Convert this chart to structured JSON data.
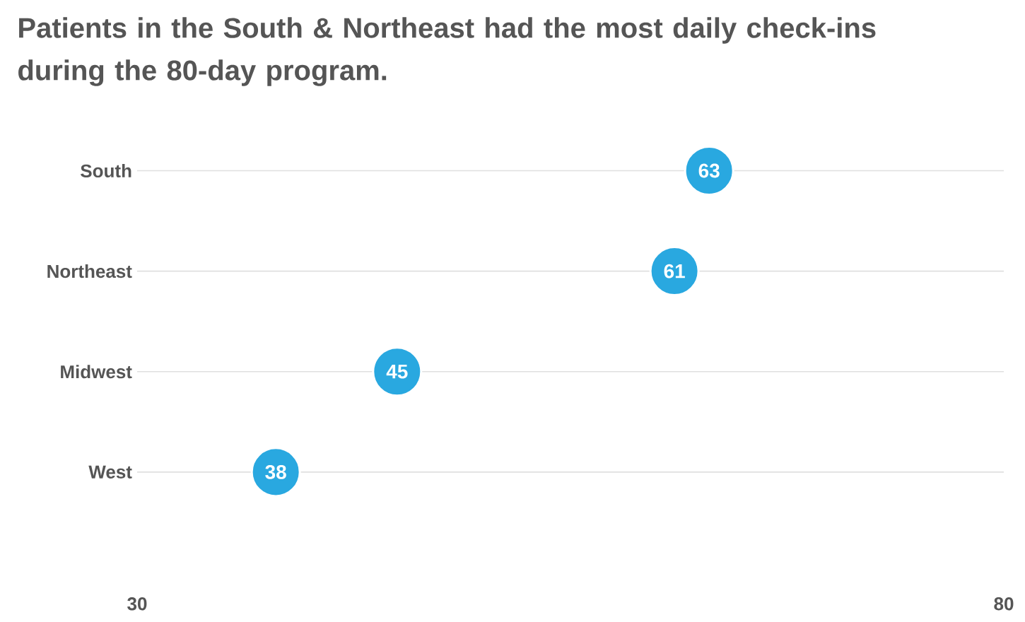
{
  "chart_data": {
    "type": "scatter",
    "title": "Patients in the South & Northeast had the most daily check-ins during the 80-day program.",
    "orientation": "horizontal",
    "categories": [
      "South",
      "Northeast",
      "Midwest",
      "West"
    ],
    "values": [
      63,
      61,
      45,
      38
    ],
    "color": "#29a8e0",
    "marker": "circle",
    "data_labels": true,
    "grid": "y",
    "xlim": [
      30,
      80
    ],
    "xticks": [
      30,
      80
    ]
  }
}
